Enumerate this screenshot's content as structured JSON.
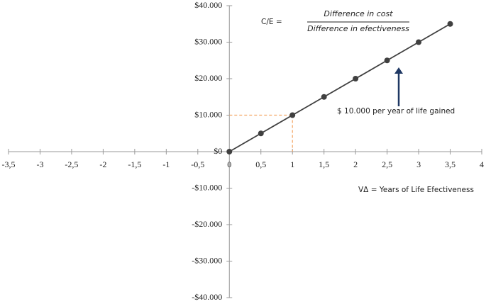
{
  "chart_data": {
    "type": "line",
    "x": [
      0,
      0.5,
      1,
      1.5,
      2,
      2.5,
      3,
      3.5
    ],
    "series": [
      {
        "color": "#404040",
        "values": [
          0,
          5000,
          10000,
          15000,
          20000,
          25000,
          30000,
          35000
        ]
      }
    ],
    "xlim": [
      -3.5,
      4
    ],
    "ylim": [
      -40000,
      40000
    ],
    "xticks": [
      {
        "value": -3.5,
        "label": "-3,5"
      },
      -3,
      {
        "value": -2.5,
        "label": "-2,5"
      },
      -2,
      {
        "value": -1.5,
        "label": "-1,5"
      },
      -1,
      {
        "value": -0.5,
        "label": "-0,5"
      },
      0,
      {
        "value": 0.5,
        "label": "0,5"
      },
      1,
      {
        "value": 1.5,
        "label": "1,5"
      },
      2,
      {
        "value": 2.5,
        "label": "2,5"
      },
      3,
      {
        "value": 3.5,
        "label": "3,5"
      },
      4
    ],
    "yticks": [
      {
        "value": -40000,
        "label": "-$40.000"
      },
      {
        "value": -30000,
        "label": "-$30.000"
      },
      {
        "value": -20000,
        "label": "-$20.000"
      },
      {
        "value": -10000,
        "label": "-$10.000"
      },
      {
        "value": 0,
        "label": "$0"
      },
      {
        "value": 10000,
        "label": "$10.000"
      },
      {
        "value": 20000,
        "label": "$20.000"
      },
      {
        "value": 30000,
        "label": "$30.000"
      },
      {
        "value": 40000,
        "label": "$40.000"
      }
    ],
    "highlight": {
      "x": 1,
      "y": 10000,
      "color": "#f4a460"
    },
    "formula": {
      "lhs": "C/E =",
      "numerator": "Difference in cost",
      "denominator": "Difference in efectiveness"
    },
    "annotation": "$ 10.000 per year of life gained",
    "x_label": "VΔ  = Years of Life Efectiveness"
  }
}
